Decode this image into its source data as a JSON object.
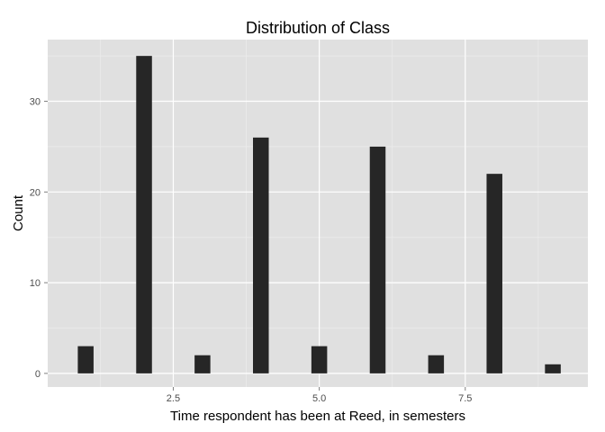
{
  "chart_data": {
    "type": "bar",
    "title": "Distribution of Class",
    "xlabel": "Time respondent has been at Reed, in semesters",
    "ylabel": "Count",
    "x": [
      1,
      2,
      3,
      4,
      5,
      6,
      7,
      8,
      9
    ],
    "values": [
      3,
      35,
      2,
      26,
      3,
      25,
      2,
      22,
      1
    ],
    "bar_width": 0.27,
    "xlim": [
      0.35,
      9.6
    ],
    "ylim": [
      -1.5,
      36.8
    ],
    "x_ticks": [
      2.5,
      5.0,
      7.5
    ],
    "x_tick_labels": [
      "2.5",
      "5.0",
      "7.5"
    ],
    "y_ticks": [
      0,
      10,
      20,
      30
    ],
    "y_tick_labels": [
      "0",
      "10",
      "20",
      "30"
    ],
    "grid": true,
    "colors": {
      "bar": "#262626",
      "panel": "#e0e0e0",
      "grid_major": "#ffffff",
      "grid_minor": "#ebebeb"
    }
  }
}
